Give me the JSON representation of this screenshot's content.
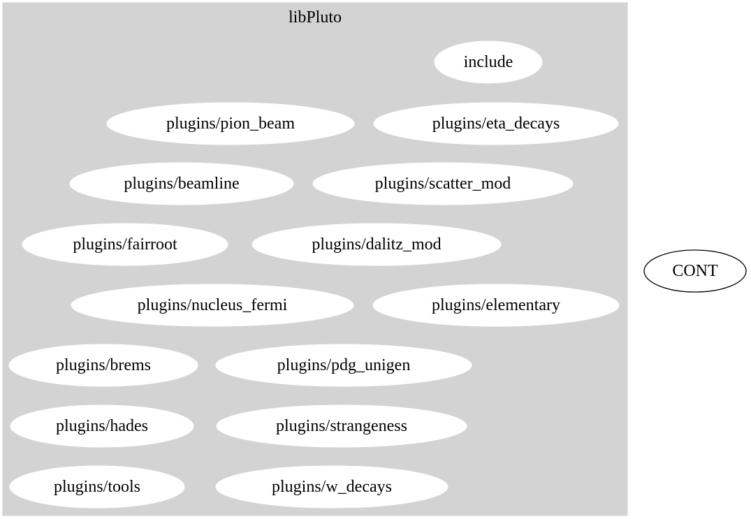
{
  "cluster": {
    "label": "libPluto",
    "color": "#d3d3d3"
  },
  "nodes": [
    {
      "id": "include",
      "label": "include"
    },
    {
      "id": "pion_beam",
      "label": "plugins/pion_beam"
    },
    {
      "id": "eta_decays",
      "label": "plugins/eta_decays"
    },
    {
      "id": "beamline",
      "label": "plugins/beamline"
    },
    {
      "id": "scatter_mod",
      "label": "plugins/scatter_mod"
    },
    {
      "id": "fairroot",
      "label": "plugins/fairroot"
    },
    {
      "id": "dalitz_mod",
      "label": "plugins/dalitz_mod"
    },
    {
      "id": "nucleus_fermi",
      "label": "plugins/nucleus_fermi"
    },
    {
      "id": "elementary",
      "label": "plugins/elementary"
    },
    {
      "id": "brems",
      "label": "plugins/brems"
    },
    {
      "id": "pdg_unigen",
      "label": "plugins/pdg_unigen"
    },
    {
      "id": "hades",
      "label": "plugins/hades"
    },
    {
      "id": "strangeness",
      "label": "plugins/strangeness"
    },
    {
      "id": "tools",
      "label": "plugins/tools"
    },
    {
      "id": "w_decays",
      "label": "plugins/w_decays"
    }
  ],
  "outside": {
    "id": "cont",
    "label": "CONT"
  }
}
